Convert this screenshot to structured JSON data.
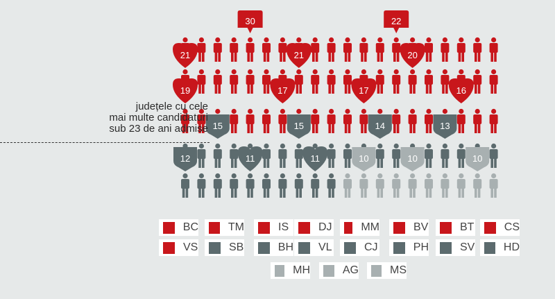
{
  "annotation": {
    "line1": "județele cu cele",
    "line2": "mai multe candidaturi",
    "line3": "sub 23 de ani admise"
  },
  "colors": {
    "red": "#c8161b",
    "dark": "#5c6b6e",
    "light": "#a8b0b1"
  },
  "chart_data": {
    "type": "pictogram",
    "title": "",
    "series": [
      {
        "code": "BC",
        "value": 30,
        "group": "red"
      },
      {
        "code": "TM",
        "value": 22,
        "group": "red"
      },
      {
        "code": "IS",
        "value": 21,
        "group": "red"
      },
      {
        "code": "DJ",
        "value": 21,
        "group": "red"
      },
      {
        "code": "MM",
        "value": 20,
        "group": "red"
      },
      {
        "code": "BV",
        "value": 19,
        "group": "red"
      },
      {
        "code": "BT",
        "value": 17,
        "group": "red"
      },
      {
        "code": "CS",
        "value": 17,
        "group": "red"
      },
      {
        "code": "VS",
        "value": 16,
        "group": "red"
      },
      {
        "code": "SB",
        "value": 15,
        "group": "dark"
      },
      {
        "code": "BH",
        "value": 15,
        "group": "dark"
      },
      {
        "code": "VL",
        "value": 14,
        "group": "dark"
      },
      {
        "code": "CJ",
        "value": 13,
        "group": "dark"
      },
      {
        "code": "PH",
        "value": 12,
        "group": "dark"
      },
      {
        "code": "SV",
        "value": 11,
        "group": "dark"
      },
      {
        "code": "HD",
        "value": 11,
        "group": "dark"
      },
      {
        "code": "MH",
        "value": 10,
        "group": "light"
      },
      {
        "code": "AG",
        "value": 10,
        "group": "light"
      },
      {
        "code": "MS",
        "value": 10,
        "group": "light"
      }
    ]
  },
  "legend": [
    {
      "label": "BC",
      "group": "red"
    },
    {
      "label": "TM",
      "group": "red"
    },
    {
      "label": "IS",
      "group": "red"
    },
    {
      "label": "DJ",
      "group": "red"
    },
    {
      "label": "MM",
      "group": "red"
    },
    {
      "label": "BV",
      "group": "red"
    },
    {
      "label": "BT",
      "group": "red"
    },
    {
      "label": "CS",
      "group": "red"
    },
    {
      "label": "VS",
      "group": "red"
    },
    {
      "label": "SB",
      "group": "dark"
    },
    {
      "label": "BH",
      "group": "dark"
    },
    {
      "label": "VL",
      "group": "dark"
    },
    {
      "label": "CJ",
      "group": "dark"
    },
    {
      "label": "PH",
      "group": "dark"
    },
    {
      "label": "SV",
      "group": "dark"
    },
    {
      "label": "HD",
      "group": "dark"
    },
    {
      "label": "MH",
      "group": "light"
    },
    {
      "label": "AG",
      "group": "light"
    },
    {
      "label": "MS",
      "group": "light"
    }
  ]
}
